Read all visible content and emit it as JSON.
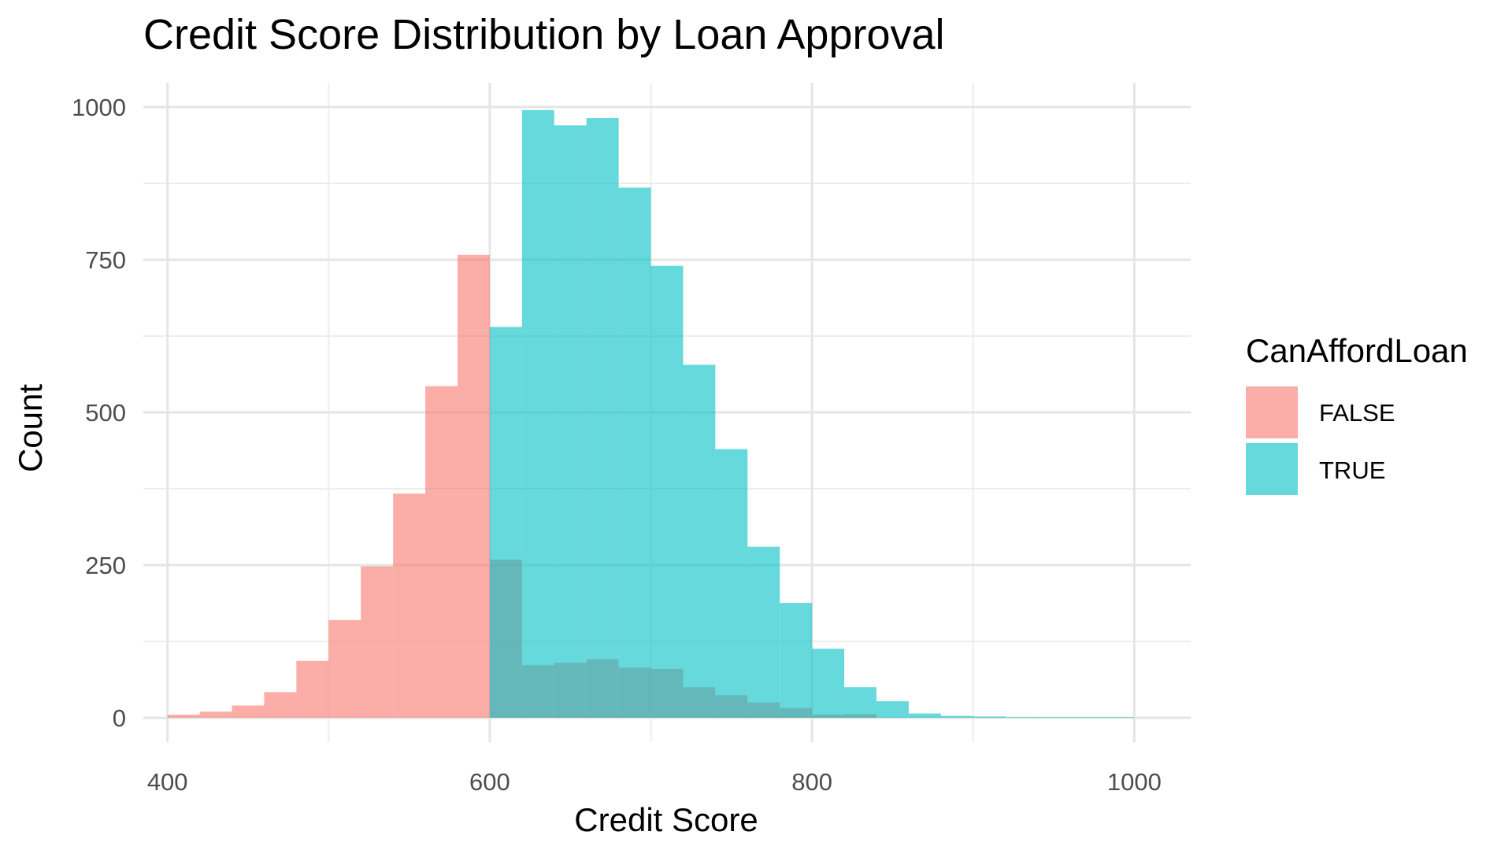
{
  "chart_data": {
    "type": "bar",
    "title": "Credit Score Distribution by Loan Approval",
    "xlabel": "Credit Score",
    "ylabel": "Count",
    "xlim": [
      385,
      1035
    ],
    "ylim": [
      -40,
      1040
    ],
    "xticks": [
      400,
      600,
      800,
      1000
    ],
    "yticks": [
      0,
      250,
      500,
      750,
      1000
    ],
    "grid": true,
    "legend_position": "right",
    "legend_title": "CanAffordLoan",
    "series": [
      {
        "name": "FALSE",
        "color": "#F8766D",
        "bins": [
          {
            "x0": 400,
            "x1": 420,
            "value": 5
          },
          {
            "x0": 420,
            "x1": 440,
            "value": 10
          },
          {
            "x0": 440,
            "x1": 460,
            "value": 20
          },
          {
            "x0": 460,
            "x1": 480,
            "value": 42
          },
          {
            "x0": 480,
            "x1": 500,
            "value": 93
          },
          {
            "x0": 500,
            "x1": 520,
            "value": 160
          },
          {
            "x0": 520,
            "x1": 540,
            "value": 248
          },
          {
            "x0": 540,
            "x1": 560,
            "value": 367
          },
          {
            "x0": 560,
            "x1": 580,
            "value": 543
          },
          {
            "x0": 580,
            "x1": 600,
            "value": 758
          },
          {
            "x0": 600,
            "x1": 620,
            "value": 259
          },
          {
            "x0": 620,
            "x1": 640,
            "value": 86
          },
          {
            "x0": 640,
            "x1": 660,
            "value": 90
          },
          {
            "x0": 660,
            "x1": 680,
            "value": 96
          },
          {
            "x0": 680,
            "x1": 700,
            "value": 82
          },
          {
            "x0": 700,
            "x1": 720,
            "value": 80
          },
          {
            "x0": 720,
            "x1": 740,
            "value": 50
          },
          {
            "x0": 740,
            "x1": 760,
            "value": 37
          },
          {
            "x0": 760,
            "x1": 780,
            "value": 25
          },
          {
            "x0": 780,
            "x1": 800,
            "value": 16
          },
          {
            "x0": 800,
            "x1": 820,
            "value": 5
          },
          {
            "x0": 820,
            "x1": 840,
            "value": 6
          }
        ]
      },
      {
        "name": "TRUE",
        "color": "#00BFC4",
        "bins": [
          {
            "x0": 600,
            "x1": 620,
            "value": 640
          },
          {
            "x0": 620,
            "x1": 640,
            "value": 995
          },
          {
            "x0": 640,
            "x1": 660,
            "value": 970
          },
          {
            "x0": 660,
            "x1": 680,
            "value": 982
          },
          {
            "x0": 680,
            "x1": 700,
            "value": 868
          },
          {
            "x0": 700,
            "x1": 720,
            "value": 740
          },
          {
            "x0": 720,
            "x1": 740,
            "value": 578
          },
          {
            "x0": 740,
            "x1": 760,
            "value": 440
          },
          {
            "x0": 760,
            "x1": 780,
            "value": 280
          },
          {
            "x0": 780,
            "x1": 800,
            "value": 188
          },
          {
            "x0": 800,
            "x1": 820,
            "value": 113
          },
          {
            "x0": 820,
            "x1": 840,
            "value": 50
          },
          {
            "x0": 840,
            "x1": 860,
            "value": 27
          },
          {
            "x0": 860,
            "x1": 880,
            "value": 7
          },
          {
            "x0": 880,
            "x1": 900,
            "value": 3
          },
          {
            "x0": 900,
            "x1": 920,
            "value": 2
          },
          {
            "x0": 920,
            "x1": 940,
            "value": 1
          },
          {
            "x0": 940,
            "x1": 960,
            "value": 1
          },
          {
            "x0": 960,
            "x1": 980,
            "value": 1
          },
          {
            "x0": 980,
            "x1": 1000,
            "value": 1
          }
        ]
      }
    ]
  }
}
